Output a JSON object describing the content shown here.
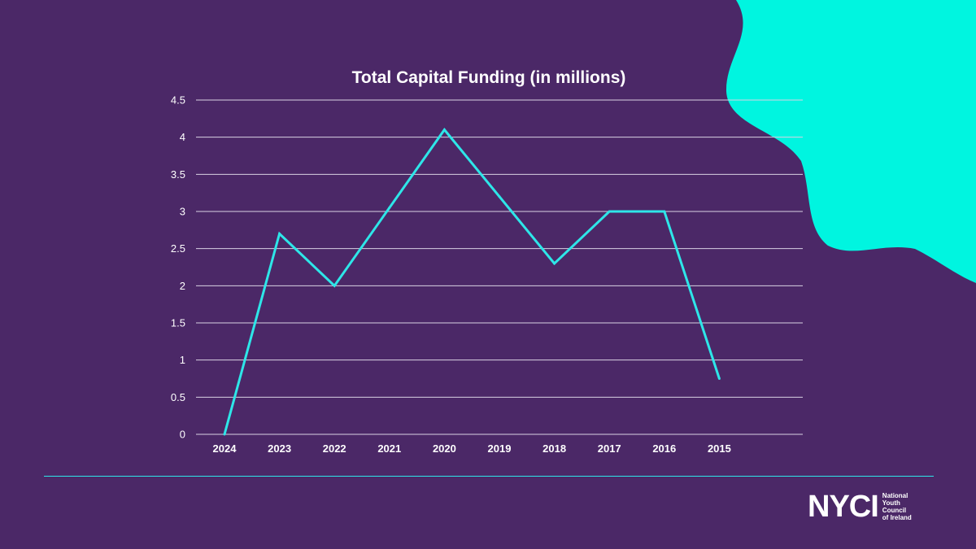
{
  "colors": {
    "background": "#4b2867",
    "accent": "#00f5e0",
    "line": "#2ee6e8",
    "grid": "#d9d2e3",
    "text": "#ffffff"
  },
  "chart_data": {
    "type": "line",
    "title": "Total Capital Funding (in millions)",
    "xlabel": "",
    "ylabel": "",
    "categories": [
      "2024",
      "2023",
      "2022",
      "2021",
      "2020",
      "2019",
      "2018",
      "2017",
      "2016",
      "2015"
    ],
    "series": [
      {
        "values": [
          0,
          2.7,
          2.0,
          3.05,
          4.1,
          3.2,
          2.3,
          3.0,
          3.0,
          0.75
        ]
      }
    ],
    "ylim": [
      0,
      4.5
    ],
    "yticks": [
      "0",
      "0.5",
      "1",
      "1.5",
      "2",
      "2.5",
      "3",
      "3.5",
      "4",
      "4.5"
    ],
    "grid": true,
    "legend": "none"
  },
  "logo": {
    "mark": "NYCI",
    "sub_lines": [
      "National",
      "Youth",
      "Council",
      "of Ireland"
    ]
  }
}
